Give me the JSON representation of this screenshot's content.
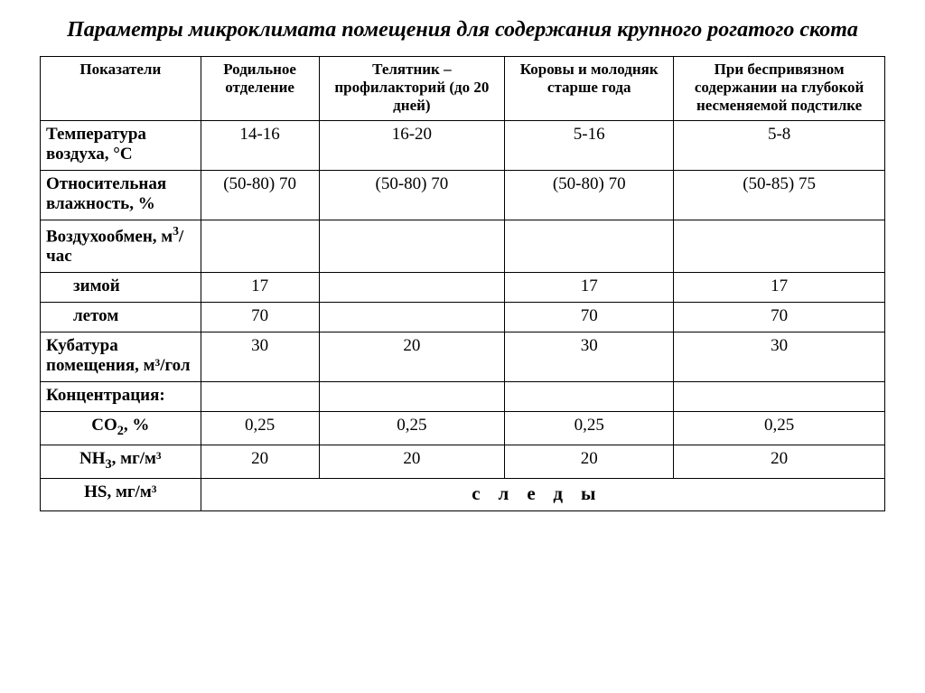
{
  "title": "Параметры микроклимата помещения для содержания крупного рогатого скота",
  "columns": {
    "param": "Показатели",
    "col1": "Родильное отделение",
    "col2": "Телятник – профилакторий (до 20 дней)",
    "col3": "Коровы и молодняк старше года",
    "col4": "При беспривязном содержании на глубокой несменяемой подстилке"
  },
  "col_widths": {
    "param": "19%",
    "col1": "14%",
    "col2": "22%",
    "col3": "20%",
    "col4": "25%"
  },
  "rows": {
    "temp": {
      "label": "Температура воздуха, °С",
      "c1": "14-16",
      "c2": "16-20",
      "c3": "5-16",
      "c4": "5-8"
    },
    "humid": {
      "label": "Относительная влажность, %",
      "c1": "(50-80) 70",
      "c2": "(50-80) 70",
      "c3": "(50-80) 70",
      "c4": "(50-85) 75"
    },
    "airexch": {
      "label": "Воздухообмен, м³/ час",
      "c1": "",
      "c2": "",
      "c3": "",
      "c4": ""
    },
    "winter": {
      "label": "зимой",
      "c1": "17",
      "c2": "",
      "c3": "17",
      "c4": "17"
    },
    "summer": {
      "label": "летом",
      "c1": "70",
      "c2": "",
      "c3": "70",
      "c4": "70"
    },
    "cubature": {
      "label": "Кубатура помещения, м³/гол",
      "c1": "30",
      "c2": "20",
      "c3": "30",
      "c4": "30"
    },
    "conc": {
      "label": "Концентрация:",
      "c1": "",
      "c2": "",
      "c3": "",
      "c4": ""
    },
    "co2": {
      "label_html": "CO₂, %",
      "c1": "0,25",
      "c2": "0,25",
      "c3": "0,25",
      "c4": "0,25"
    },
    "nh3": {
      "label_html": "NH₃, мг/м³",
      "c1": "20",
      "c2": "20",
      "c3": "20",
      "c4": "20"
    },
    "hs": {
      "label_html": "HS, мг/м³",
      "span_text": "следы"
    }
  }
}
